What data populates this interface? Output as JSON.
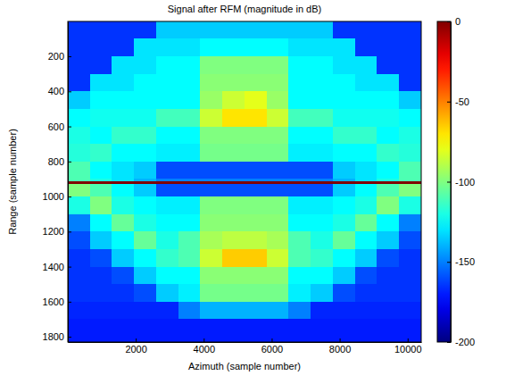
{
  "chart_data": {
    "type": "heatmap",
    "title": "Signal after RFM (magnitude in dB)",
    "xlabel": "Azimuth (sample number)",
    "ylabel": "Range (sample number)",
    "color": "jet",
    "xlim": [
      1,
      10400
    ],
    "ylim": [
      1,
      1830
    ],
    "xticks": [
      2000,
      4000,
      6000,
      8000,
      10000
    ],
    "yticks": [
      200,
      400,
      600,
      800,
      1000,
      1200,
      1400,
      1600,
      1800
    ],
    "zlim": [
      -200,
      0
    ],
    "zticks": [
      -200,
      -150,
      -100,
      -50,
      0
    ],
    "xbins": [
      0,
      650,
      1300,
      1950,
      2600,
      3250,
      3900,
      4550,
      5200,
      5850,
      6500,
      7150,
      7800,
      8450,
      9100,
      9750,
      10400
    ],
    "ybins": [
      0,
      100,
      200,
      300,
      400,
      500,
      600,
      700,
      800,
      900,
      912,
      928,
      1000,
      1100,
      1200,
      1300,
      1400,
      1500,
      1600,
      1700,
      1830
    ],
    "values": [
      [
        -165,
        -165,
        -165,
        -165,
        -135,
        -135,
        -135,
        -135,
        -135,
        -135,
        -135,
        -135,
        -165,
        -165,
        -165,
        -165
      ],
      [
        -165,
        -165,
        -165,
        -130,
        -130,
        -130,
        -125,
        -125,
        -125,
        -125,
        -130,
        -130,
        -130,
        -165,
        -165,
        -165
      ],
      [
        -165,
        -165,
        -130,
        -130,
        -125,
        -125,
        -100,
        -100,
        -100,
        -100,
        -125,
        -125,
        -130,
        -130,
        -165,
        -165
      ],
      [
        -165,
        -130,
        -130,
        -125,
        -125,
        -125,
        -98,
        -98,
        -98,
        -98,
        -125,
        -125,
        -125,
        -130,
        -130,
        -165
      ],
      [
        -135,
        -125,
        -125,
        -125,
        -125,
        -125,
        -95,
        -85,
        -80,
        -95,
        -125,
        -125,
        -125,
        -125,
        -125,
        -135
      ],
      [
        -125,
        -122,
        -122,
        -122,
        -112,
        -112,
        -85,
        -70,
        -70,
        -85,
        -112,
        -112,
        -122,
        -122,
        -122,
        -125
      ],
      [
        -120,
        -125,
        -115,
        -115,
        -125,
        -125,
        -100,
        -100,
        -100,
        -100,
        -125,
        -125,
        -115,
        -115,
        -125,
        -120
      ],
      [
        -118,
        -115,
        -125,
        -125,
        -128,
        -128,
        -102,
        -102,
        -102,
        -102,
        -128,
        -128,
        -125,
        -125,
        -115,
        -118
      ],
      [
        -110,
        -125,
        -130,
        -135,
        -160,
        -160,
        -160,
        -160,
        -160,
        -160,
        -160,
        -160,
        -135,
        -130,
        -125,
        -110
      ],
      [
        -110,
        -120,
        -130,
        -140,
        -150,
        -150,
        -150,
        -150,
        -150,
        -150,
        -150,
        -150,
        -140,
        -130,
        -120,
        -110
      ],
      [
        0,
        0,
        0,
        0,
        0,
        0,
        0,
        0,
        0,
        0,
        0,
        0,
        0,
        0,
        0,
        0
      ],
      [
        -100,
        -110,
        -125,
        -135,
        -160,
        -160,
        -160,
        -160,
        -160,
        -160,
        -160,
        -160,
        -135,
        -125,
        -110,
        -100
      ],
      [
        -120,
        -100,
        -120,
        -125,
        -128,
        -128,
        -100,
        -100,
        -100,
        -100,
        -128,
        -128,
        -125,
        -120,
        -100,
        -120
      ],
      [
        -150,
        -125,
        -105,
        -120,
        -125,
        -125,
        -98,
        -98,
        -98,
        -98,
        -125,
        -125,
        -120,
        -105,
        -125,
        -150
      ],
      [
        -160,
        -135,
        -125,
        -105,
        -120,
        -110,
        -92,
        -88,
        -88,
        -92,
        -110,
        -120,
        -105,
        -125,
        -135,
        -160
      ],
      [
        -165,
        -160,
        -135,
        -125,
        -115,
        -110,
        -85,
        -65,
        -65,
        -85,
        -110,
        -115,
        -125,
        -135,
        -160,
        -165
      ],
      [
        -165,
        -165,
        -160,
        -135,
        -125,
        -125,
        -98,
        -98,
        -98,
        -98,
        -125,
        -125,
        -135,
        -160,
        -165,
        -165
      ],
      [
        -165,
        -165,
        -165,
        -160,
        -135,
        -128,
        -102,
        -102,
        -102,
        -102,
        -128,
        -135,
        -160,
        -165,
        -165,
        -165
      ],
      [
        -168,
        -168,
        -168,
        -168,
        -168,
        -150,
        -140,
        -140,
        -140,
        -140,
        -150,
        -168,
        -168,
        -168,
        -168,
        -168
      ],
      [
        -170,
        -170,
        -170,
        -170,
        -170,
        -170,
        -170,
        -170,
        -170,
        -170,
        -170,
        -170,
        -170,
        -170,
        -170,
        -170
      ]
    ]
  }
}
